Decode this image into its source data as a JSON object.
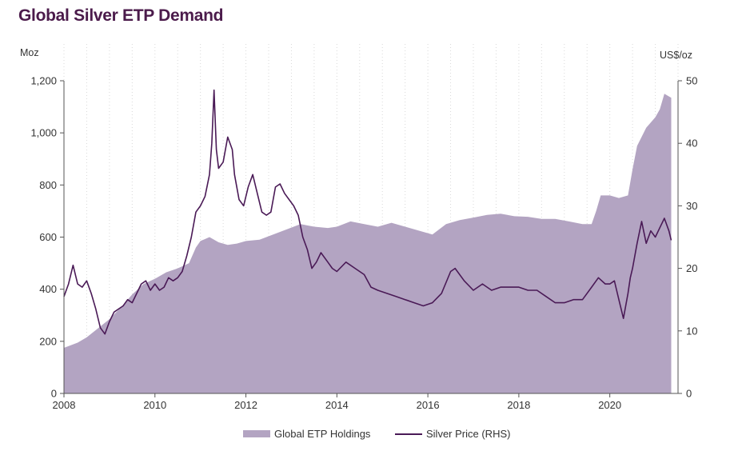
{
  "page": {
    "title": "Global Silver ETP Demand"
  },
  "colors": {
    "title": "#4b1b4b",
    "area": "#b3a4c2",
    "line": "#4a1a56",
    "axis": "#555555",
    "grid": "#d9d9d9"
  },
  "chart_data": {
    "type": "area",
    "title": "Global Silver ETP Demand",
    "ylabel": "Moz",
    "y2label": "US$/oz",
    "xlim": [
      2008,
      2021.5
    ],
    "ylim": [
      0,
      1200
    ],
    "y2lim": [
      0,
      50
    ],
    "x_ticks": [
      2008,
      2010,
      2012,
      2014,
      2016,
      2018,
      2020
    ],
    "x_tick_labels": [
      "2008",
      "2010",
      "2012",
      "2014",
      "2016",
      "2018",
      "2020"
    ],
    "y_ticks": [
      0,
      200,
      400,
      600,
      800,
      1000,
      1200
    ],
    "y_tick_labels": [
      "0",
      "200",
      "400",
      "600",
      "800",
      "1,000",
      "1,200"
    ],
    "y2_ticks": [
      0,
      10,
      20,
      30,
      40,
      50
    ],
    "y2_tick_labels": [
      "0",
      "10",
      "20",
      "30",
      "40",
      "50"
    ],
    "grid": "vertical dotted",
    "legend_position": "bottom",
    "series": [
      {
        "name": "Global ETP Holdings",
        "kind": "area",
        "axis": "left",
        "x": [
          2008.0,
          2008.3,
          2008.5,
          2008.75,
          2009.0,
          2009.25,
          2009.5,
          2009.75,
          2010.0,
          2010.25,
          2010.5,
          2010.75,
          2010.9,
          2011.0,
          2011.2,
          2011.4,
          2011.6,
          2011.8,
          2012.0,
          2012.3,
          2012.6,
          2012.9,
          2013.2,
          2013.5,
          2013.8,
          2014.0,
          2014.3,
          2014.6,
          2014.9,
          2015.2,
          2015.5,
          2015.8,
          2016.1,
          2016.4,
          2016.7,
          2017.0,
          2017.3,
          2017.6,
          2017.9,
          2018.2,
          2018.5,
          2018.8,
          2019.1,
          2019.4,
          2019.6,
          2019.7,
          2019.8,
          2020.0,
          2020.2,
          2020.4,
          2020.5,
          2020.6,
          2020.8,
          2021.0,
          2021.1,
          2021.2,
          2021.35
        ],
        "values": [
          175,
          195,
          215,
          250,
          285,
          330,
          380,
          420,
          440,
          465,
          480,
          500,
          560,
          585,
          600,
          580,
          570,
          575,
          585,
          590,
          610,
          630,
          650,
          640,
          635,
          640,
          660,
          650,
          640,
          655,
          640,
          625,
          610,
          650,
          665,
          675,
          685,
          690,
          680,
          678,
          670,
          670,
          660,
          650,
          650,
          700,
          760,
          760,
          750,
          760,
          860,
          950,
          1020,
          1060,
          1090,
          1150,
          1135
        ]
      },
      {
        "name": "Silver Price (RHS)",
        "kind": "line",
        "axis": "right",
        "x": [
          2008.0,
          2008.1,
          2008.2,
          2008.3,
          2008.4,
          2008.5,
          2008.6,
          2008.7,
          2008.8,
          2008.9,
          2009.0,
          2009.1,
          2009.2,
          2009.3,
          2009.4,
          2009.5,
          2009.6,
          2009.7,
          2009.8,
          2009.9,
          2010.0,
          2010.1,
          2010.2,
          2010.3,
          2010.4,
          2010.5,
          2010.6,
          2010.7,
          2010.8,
          2010.9,
          2011.0,
          2011.1,
          2011.2,
          2011.25,
          2011.3,
          2011.35,
          2011.4,
          2011.5,
          2011.6,
          2011.7,
          2011.75,
          2011.85,
          2011.95,
          2012.05,
          2012.15,
          2012.25,
          2012.35,
          2012.45,
          2012.55,
          2012.65,
          2012.75,
          2012.85,
          2012.95,
          2013.05,
          2013.15,
          2013.25,
          2013.35,
          2013.45,
          2013.55,
          2013.65,
          2013.8,
          2013.9,
          2014.0,
          2014.2,
          2014.4,
          2014.6,
          2014.75,
          2014.9,
          2015.1,
          2015.3,
          2015.5,
          2015.7,
          2015.9,
          2016.1,
          2016.3,
          2016.5,
          2016.6,
          2016.8,
          2017.0,
          2017.2,
          2017.4,
          2017.6,
          2017.8,
          2018.0,
          2018.2,
          2018.4,
          2018.6,
          2018.8,
          2019.0,
          2019.2,
          2019.4,
          2019.6,
          2019.75,
          2019.9,
          2020.0,
          2020.1,
          2020.15,
          2020.2,
          2020.3,
          2020.4,
          2020.45,
          2020.5,
          2020.6,
          2020.7,
          2020.8,
          2020.9,
          2021.0,
          2021.1,
          2021.2,
          2021.3,
          2021.35
        ],
        "values": [
          15.5,
          17.5,
          20.5,
          17.5,
          17.0,
          18.0,
          16.0,
          13.5,
          10.5,
          9.5,
          11.5,
          13.0,
          13.5,
          14.0,
          15.0,
          14.5,
          16.0,
          17.5,
          18.0,
          16.5,
          17.5,
          16.5,
          17.0,
          18.5,
          18.0,
          18.5,
          19.5,
          22.0,
          25.0,
          29.0,
          30.0,
          31.5,
          35.0,
          40.0,
          48.5,
          39.0,
          36.0,
          37.0,
          41.0,
          39.0,
          35.0,
          31.0,
          30.0,
          33.0,
          35.0,
          32.0,
          29.0,
          28.5,
          29.0,
          33.0,
          33.5,
          32.0,
          31.0,
          30.0,
          28.5,
          25.0,
          23.0,
          20.0,
          21.0,
          22.5,
          21.0,
          20.0,
          19.5,
          21.0,
          20.0,
          19.0,
          17.0,
          16.5,
          16.0,
          15.5,
          15.0,
          14.5,
          14.0,
          14.5,
          16.0,
          19.5,
          20.0,
          18.0,
          16.5,
          17.5,
          16.5,
          17.0,
          17.0,
          17.0,
          16.5,
          16.5,
          15.5,
          14.5,
          14.5,
          15.0,
          15.0,
          17.0,
          18.5,
          17.5,
          17.5,
          18.0,
          16.5,
          15.0,
          12.0,
          16.0,
          18.5,
          20.0,
          24.0,
          27.5,
          24.0,
          26.0,
          25.0,
          26.5,
          28.0,
          26.0,
          24.5
        ]
      }
    ]
  }
}
